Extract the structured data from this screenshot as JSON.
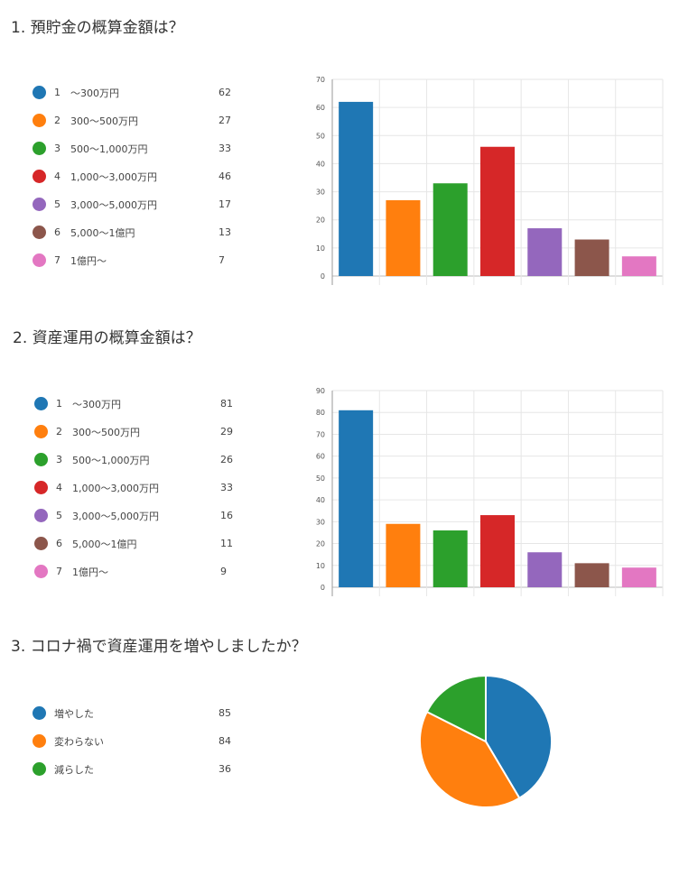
{
  "colors": [
    "#1f77b4",
    "#ff7f0e",
    "#2ca02c",
    "#d62728",
    "#9467bd",
    "#8c564b",
    "#e377c2"
  ],
  "questions": [
    {
      "title": "1.  預貯金の概算金額は？",
      "legend": [
        {
          "idx": "1",
          "label": "〜300万円",
          "count": "62"
        },
        {
          "idx": "2",
          "label": "300〜500万円",
          "count": "27"
        },
        {
          "idx": "3",
          "label": "500〜1,000万円",
          "count": "33"
        },
        {
          "idx": "4",
          "label": "1,000〜3,000万円",
          "count": "46"
        },
        {
          "idx": "5",
          "label": "3,000〜5,000万円",
          "count": "17"
        },
        {
          "idx": "6",
          "label": "5,000〜1億円",
          "count": "13"
        },
        {
          "idx": "7",
          "label": "1億円〜",
          "count": "7"
        }
      ]
    },
    {
      "title": "2.  資産運用の概算金額は？",
      "legend": [
        {
          "idx": "1",
          "label": "〜300万円",
          "count": "81"
        },
        {
          "idx": "2",
          "label": "300〜500万円",
          "count": "29"
        },
        {
          "idx": "3",
          "label": "500〜1,000万円",
          "count": "26"
        },
        {
          "idx": "4",
          "label": "1,000〜3,000万円",
          "count": "33"
        },
        {
          "idx": "5",
          "label": "3,000〜5,000万円",
          "count": "16"
        },
        {
          "idx": "6",
          "label": "5,000〜1億円",
          "count": "11"
        },
        {
          "idx": "7",
          "label": "1億円〜",
          "count": "9"
        }
      ]
    },
    {
      "title": "3.  コロナ禍で資産運用を増やしましたか？",
      "legend": [
        {
          "label": "増やした",
          "count": "85"
        },
        {
          "label": "変わらない",
          "count": "84"
        },
        {
          "label": "減らした",
          "count": "36"
        }
      ]
    }
  ],
  "chart_data": [
    {
      "type": "bar",
      "categories": [
        "1",
        "2",
        "3",
        "4",
        "5",
        "6",
        "7"
      ],
      "values": [
        62,
        27,
        33,
        46,
        17,
        13,
        7
      ],
      "ylim": [
        0,
        70
      ],
      "yticks": [
        "0",
        "10",
        "20",
        "30",
        "40",
        "50",
        "60",
        "70"
      ],
      "grid": true
    },
    {
      "type": "bar",
      "categories": [
        "1",
        "2",
        "3",
        "4",
        "5",
        "6",
        "7"
      ],
      "values": [
        81,
        29,
        26,
        33,
        16,
        11,
        9
      ],
      "ylim": [
        0,
        90
      ],
      "yticks": [
        "0",
        "10",
        "20",
        "30",
        "40",
        "50",
        "60",
        "70",
        "80",
        "90"
      ],
      "grid": true
    },
    {
      "type": "pie",
      "categories": [
        "増やした",
        "変わらない",
        "減らした"
      ],
      "values": [
        85,
        84,
        36
      ]
    }
  ]
}
